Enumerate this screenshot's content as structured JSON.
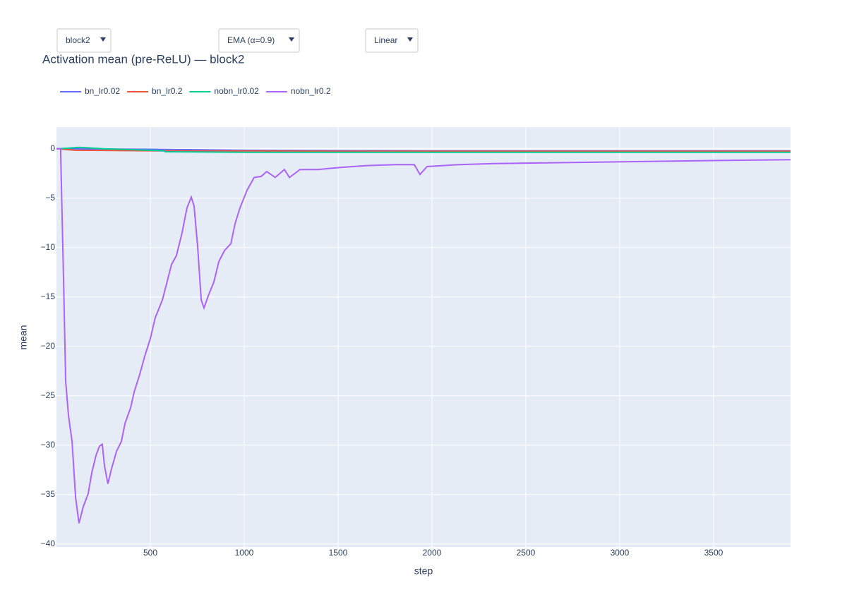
{
  "controls": [
    "block2",
    "EMA (α=0.9)",
    "Linear"
  ],
  "chart_data": {
    "type": "line",
    "title": "Activation mean (pre-ReLU) — block2",
    "x_label": "step",
    "y_label": "mean",
    "xlim": [
      0,
      3910
    ],
    "ylim": [
      -40.3,
      2.2
    ],
    "xticks": [
      500,
      1000,
      1500,
      2000,
      2500,
      3000,
      3500
    ],
    "yticks": [
      0,
      {
        "value": -5,
        "label": "−5"
      },
      {
        "value": -10,
        "label": "−10"
      },
      {
        "value": -15,
        "label": "−15"
      },
      {
        "value": -20,
        "label": "−20"
      },
      {
        "value": -25,
        "label": "−25"
      },
      {
        "value": -30,
        "label": "−30"
      },
      {
        "value": -35,
        "label": "−35"
      },
      {
        "value": -40,
        "label": "−40"
      }
    ],
    "grid": true,
    "series": [
      {
        "name": "bn_lr0.02",
        "color": "#636efa",
        "x": [
          0,
          500,
          1000,
          2000,
          3910
        ],
        "values": [
          0,
          -0.05,
          -0.15,
          -0.2,
          -0.2
        ]
      },
      {
        "name": "bn_lr0.2",
        "color": "#ef553b",
        "x": [
          0,
          100,
          500,
          1500,
          3910
        ],
        "values": [
          0,
          -0.15,
          -0.2,
          -0.25,
          -0.25
        ]
      },
      {
        "name": "nobn_lr0.02",
        "color": "#00cc96",
        "x": [
          0,
          50,
          120,
          250,
          570,
          580,
          1000,
          3910
        ],
        "values": [
          0,
          0.05,
          0.15,
          0,
          -0.2,
          -0.3,
          -0.35,
          -0.35
        ]
      },
      {
        "name": "nobn_lr0.2",
        "color": "#ab63fa",
        "x": [
          0,
          22,
          38,
          49,
          64,
          83,
          102,
          120,
          143,
          169,
          188,
          211,
          229,
          244,
          256,
          274,
          293,
          320,
          346,
          365,
          395,
          414,
          444,
          470,
          500,
          526,
          564,
          594,
          613,
          639,
          669,
          695,
          718,
          733,
          752,
          771,
          786,
          808,
          838,
          865,
          895,
          929,
          951,
          977,
          1015,
          1053,
          1090,
          1120,
          1165,
          1214,
          1241,
          1297,
          1391,
          1504,
          1654,
          1805,
          1906,
          1936,
          1974,
          2143,
          2331,
          2707,
          3083,
          3459,
          3910
        ],
        "values": [
          0,
          0,
          -13.5,
          -23.5,
          -27,
          -29.6,
          -35.3,
          -37.9,
          -36.2,
          -34.9,
          -32.8,
          -31,
          -30.1,
          -29.9,
          -32.1,
          -33.9,
          -32.4,
          -30.6,
          -29.6,
          -27.8,
          -26.2,
          -24.6,
          -22.8,
          -21,
          -19.2,
          -17.1,
          -15.3,
          -13.1,
          -11.7,
          -10.8,
          -8.5,
          -6,
          -4.9,
          -5.8,
          -9.9,
          -15.3,
          -16.1,
          -14.9,
          -13.5,
          -11.4,
          -10.3,
          -9.6,
          -7.6,
          -6,
          -4.2,
          -2.9,
          -2.8,
          -2.3,
          -2.9,
          -2.1,
          -2.9,
          -2.1,
          -2.1,
          -1.9,
          -1.7,
          -1.6,
          -1.6,
          -2.6,
          -1.8,
          -1.6,
          -1.5,
          -1.4,
          -1.3,
          -1.2,
          -1.1
        ]
      }
    ]
  }
}
